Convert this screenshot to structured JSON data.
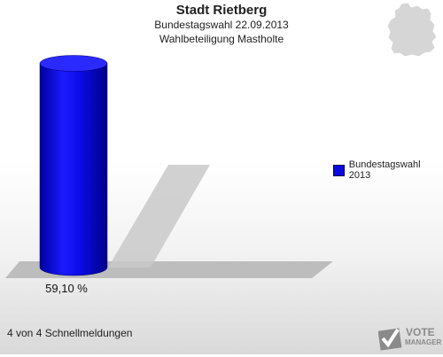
{
  "chart_data": {
    "type": "bar",
    "title": "Stadt Rietberg",
    "subtitle_1": "Bundestagswahl 22.09.2013",
    "subtitle_2": "Wahlbeteiligung Mastholte",
    "categories": [
      "Bundestagswahl 2013"
    ],
    "series": [
      {
        "name": "Bundestagswahl 2013",
        "values": [
          59.1
        ],
        "color": "#0a0adf"
      }
    ],
    "value_labels": [
      "59,10 %"
    ],
    "ylim": [
      0,
      100
    ],
    "legend_position": "right"
  },
  "footer": {
    "text": "4 von 4 Schnellmeldungen"
  },
  "logo": {
    "line1": "VOTE",
    "line2": "MANAGER"
  },
  "map_icon": "germany-map-icon"
}
